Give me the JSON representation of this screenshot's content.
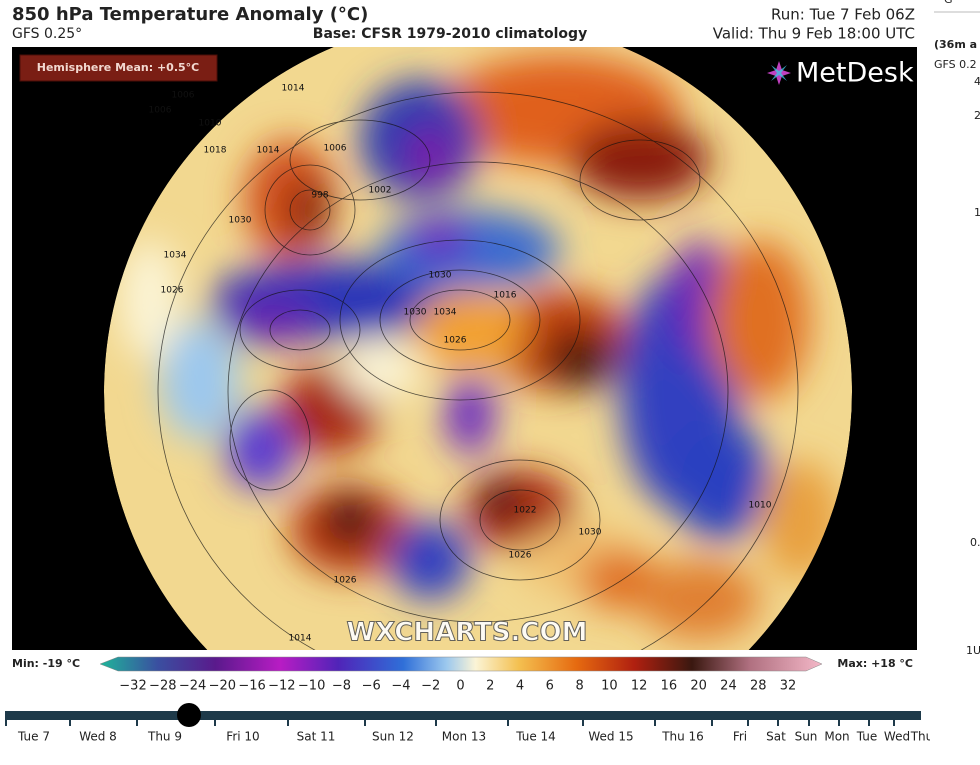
{
  "header": {
    "title": "850 hPa Temperature Anomaly (°C)",
    "model": "GFS 0.25°",
    "base": "Base: CFSR 1979-2010 climatology",
    "run": "Run: Tue 7 Feb 06Z",
    "valid": "Valid: Thu 9 Feb 18:00 UTC"
  },
  "map": {
    "hemisphere_mean": "Hemisphere Mean: +0.5°C",
    "logo": "MetDesk",
    "watermark": "WXCHARTS.COM",
    "isobar_labels": [
      "1006",
      "1006",
      "1010",
      "1014",
      "1014",
      "1018",
      "1030",
      "1034",
      "1026",
      "998",
      "1002",
      "1006",
      "1030",
      "1030",
      "1034",
      "1026",
      "1022",
      "1026",
      "1030",
      "1010",
      "1026",
      "1014",
      "1016"
    ]
  },
  "colorbar": {
    "min": "Min: -19 °C",
    "max": "Max: +18 °C",
    "ticks": [
      "−32",
      "−28",
      "−24",
      "−20",
      "−16",
      "−12",
      "−10",
      "−8",
      "−6",
      "−4",
      "−2",
      "0",
      "2",
      "4",
      "6",
      "8",
      "10",
      "12",
      "16",
      "20",
      "24",
      "28",
      "32"
    ]
  },
  "timeline": {
    "labels": [
      "Tue 7",
      "Wed 8",
      "Thu 9",
      "Fri 10",
      "Sat 11",
      "Sun 12",
      "Mon 13",
      "Tue 14",
      "Wed 15",
      "Thu 16",
      "Fri",
      "Sat",
      "Sun",
      "Mon",
      "Tue",
      "Wed",
      "Thu"
    ]
  },
  "side_panel": {
    "texts": [
      "G",
      "(36m a",
      "GFS 0.2",
      "4",
      "2",
      "1",
      "0.",
      "1U"
    ]
  }
}
